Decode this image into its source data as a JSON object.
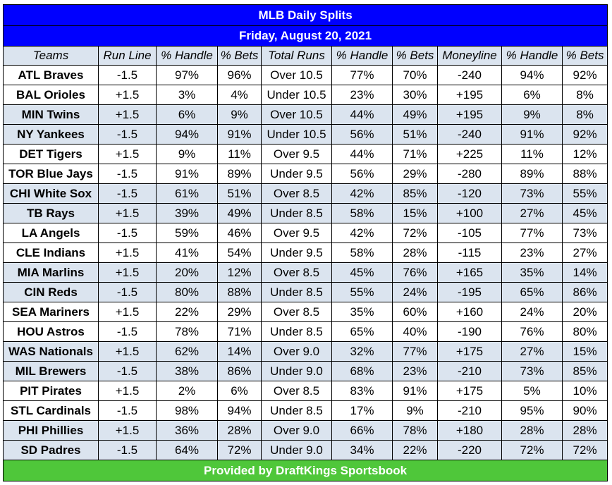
{
  "title": "MLB Daily Splits",
  "date": "Friday, August 20, 2021",
  "footer": "Provided by DraftKings Sportsbook",
  "colors": {
    "header_blue": "#0000ff",
    "row_shade": "#dbe4ef",
    "footer_green": "#4fc73a"
  },
  "headers": [
    "Teams",
    "Run Line",
    "% Handle",
    "% Bets",
    "Total Runs",
    "% Handle",
    "% Bets",
    "Moneyline",
    "% Handle",
    "% Bets"
  ],
  "rows": [
    [
      "ATL Braves",
      "-1.5",
      "97%",
      "96%",
      "Over 10.5",
      "77%",
      "70%",
      "-240",
      "94%",
      "92%"
    ],
    [
      "BAL Orioles",
      "+1.5",
      "3%",
      "4%",
      "Under 10.5",
      "23%",
      "30%",
      "+195",
      "6%",
      "8%"
    ],
    [
      "MIN Twins",
      "+1.5",
      "6%",
      "9%",
      "Over 10.5",
      "44%",
      "49%",
      "+195",
      "9%",
      "8%"
    ],
    [
      "NY Yankees",
      "-1.5",
      "94%",
      "91%",
      "Under 10.5",
      "56%",
      "51%",
      "-240",
      "91%",
      "92%"
    ],
    [
      "DET Tigers",
      "+1.5",
      "9%",
      "11%",
      "Over 9.5",
      "44%",
      "71%",
      "+225",
      "11%",
      "12%"
    ],
    [
      "TOR Blue Jays",
      "-1.5",
      "91%",
      "89%",
      "Under 9.5",
      "56%",
      "29%",
      "-280",
      "89%",
      "88%"
    ],
    [
      "CHI White Sox",
      "-1.5",
      "61%",
      "51%",
      "Over 8.5",
      "42%",
      "85%",
      "-120",
      "73%",
      "55%"
    ],
    [
      "TB Rays",
      "+1.5",
      "39%",
      "49%",
      "Under 8.5",
      "58%",
      "15%",
      "+100",
      "27%",
      "45%"
    ],
    [
      "LA Angels",
      "-1.5",
      "59%",
      "46%",
      "Over 9.5",
      "42%",
      "72%",
      "-105",
      "77%",
      "73%"
    ],
    [
      "CLE Indians",
      "+1.5",
      "41%",
      "54%",
      "Under 9.5",
      "58%",
      "28%",
      "-115",
      "23%",
      "27%"
    ],
    [
      "MIA Marlins",
      "+1.5",
      "20%",
      "12%",
      "Over 8.5",
      "45%",
      "76%",
      "+165",
      "35%",
      "14%"
    ],
    [
      "CIN Reds",
      "-1.5",
      "80%",
      "88%",
      "Under 8.5",
      "55%",
      "24%",
      "-195",
      "65%",
      "86%"
    ],
    [
      "SEA Mariners",
      "+1.5",
      "22%",
      "29%",
      "Over 8.5",
      "35%",
      "60%",
      "+160",
      "24%",
      "20%"
    ],
    [
      "HOU Astros",
      "-1.5",
      "78%",
      "71%",
      "Under 8.5",
      "65%",
      "40%",
      "-190",
      "76%",
      "80%"
    ],
    [
      "WAS Nationals",
      "+1.5",
      "62%",
      "14%",
      "Over 9.0",
      "32%",
      "77%",
      "+175",
      "27%",
      "15%"
    ],
    [
      "MIL Brewers",
      "-1.5",
      "38%",
      "86%",
      "Under 9.0",
      "68%",
      "23%",
      "-210",
      "73%",
      "85%"
    ],
    [
      "PIT Pirates",
      "+1.5",
      "2%",
      "6%",
      "Over 8.5",
      "83%",
      "91%",
      "+175",
      "5%",
      "10%"
    ],
    [
      "STL Cardinals",
      "-1.5",
      "98%",
      "94%",
      "Under 8.5",
      "17%",
      "9%",
      "-210",
      "95%",
      "90%"
    ],
    [
      "PHI Phillies",
      "+1.5",
      "36%",
      "28%",
      "Over 9.0",
      "66%",
      "78%",
      "+180",
      "28%",
      "28%"
    ],
    [
      "SD Padres",
      "-1.5",
      "64%",
      "72%",
      "Under 9.0",
      "34%",
      "22%",
      "-220",
      "72%",
      "72%"
    ]
  ]
}
